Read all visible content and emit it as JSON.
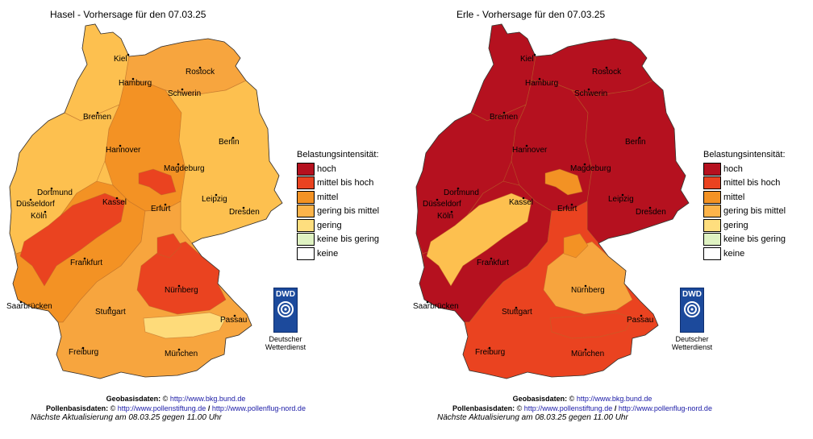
{
  "maps": [
    {
      "title": "Hasel - Vorhersage für den 07.03.25",
      "region_fills": {
        "north": "#fdc04f",
        "coast_east": "#f7a53e",
        "center": "#f39224",
        "west": "#fdc04f",
        "southwest": "#f39224",
        "south": "#f7a53e",
        "east": "#fdc04f",
        "hot1": "#ea4320",
        "hot2": "#ea4320",
        "hot3": "#ea4320",
        "hot4": "#ea4320",
        "light1": "#fedb7a"
      },
      "cities": [
        "Kiel",
        "Hamburg",
        "Rostock",
        "Schwerin",
        "Bremen",
        "Hannover",
        "Berlin",
        "Magdeburg",
        "Dortmund",
        "Düsseldorf",
        "Kassel",
        "Leipzig",
        "Köln",
        "Erfurt",
        "Dresden",
        "Frankfurt",
        "Nürnberg",
        "Saarbrücken",
        "Stuttgart",
        "Passau",
        "Freiburg",
        "München"
      ]
    },
    {
      "title": "Erle - Vorhersage für den 07.03.25",
      "region_fills": {
        "north": "#b5111f",
        "coast_east": "#b5111f",
        "center": "#b5111f",
        "west": "#b5111f",
        "southwest": "#b5111f",
        "south": "#ea4320",
        "east": "#b5111f",
        "hot1": "#f39224",
        "hot2": "#fdc04f",
        "hot3": "#f7a53e",
        "hot4": "#f39224",
        "light1": "#ea4320"
      },
      "cities": [
        "Kiel",
        "Hamburg",
        "Rostock",
        "Schwerin",
        "Bremen",
        "Hannover",
        "Berlin",
        "Magdeburg",
        "Dortmund",
        "Düsseldorf",
        "Kassel",
        "Leipzig",
        "Köln",
        "Erfurt",
        "Dresden",
        "Frankfurt",
        "Nürnberg",
        "Saarbrücken",
        "Stuttgart",
        "Passau",
        "Freiburg",
        "München"
      ]
    }
  ],
  "legend": {
    "title": "Belastungsintensität:",
    "items": [
      {
        "label": "hoch",
        "color": "#b5111f"
      },
      {
        "label": "mittel bis hoch",
        "color": "#ea4320"
      },
      {
        "label": "mittel",
        "color": "#f39224"
      },
      {
        "label": "gering bis mittel",
        "color": "#fdb44a"
      },
      {
        "label": "gering",
        "color": "#fede7e"
      },
      {
        "label": "keine bis gering",
        "color": "#dff2c2"
      },
      {
        "label": "keine",
        "color": "#ffffff"
      }
    ]
  },
  "dwd": {
    "logo_text": "DWD",
    "name_line1": "Deutscher",
    "name_line2": "Wetterdienst"
  },
  "footer": {
    "geobasis_label": "Geobasisdaten:",
    "geobasis_symbol": "©",
    "geobasis_link": "http://www.bkg.bund.de",
    "pollen_label": "Pollenbasisdaten:",
    "pollen_symbol": "©",
    "pollen_link1": "http://www.pollenstiftung.de",
    "separator": "/",
    "pollen_link2": "http://www.pollenflug-nord.de",
    "update_text": "Nächste Aktualisierung am 08.03.25 gegen 11.00 Uhr"
  }
}
